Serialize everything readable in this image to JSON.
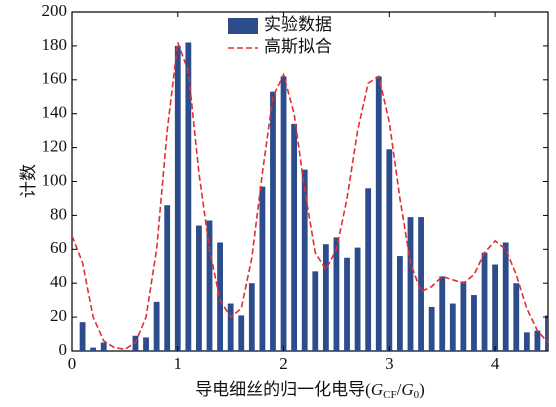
{
  "chart_data": {
    "type": "bar",
    "x": [
      0.1,
      0.2,
      0.3,
      0.4,
      0.5,
      0.6,
      0.7,
      0.8,
      0.9,
      1.0,
      1.1,
      1.2,
      1.3,
      1.4,
      1.5,
      1.6,
      1.7,
      1.8,
      1.9,
      2.0,
      2.1,
      2.2,
      2.3,
      2.4,
      2.5,
      2.6,
      2.7,
      2.8,
      2.9,
      3.0,
      3.1,
      3.2,
      3.3,
      3.4,
      3.5,
      3.6,
      3.7,
      3.8,
      3.9,
      4.0,
      4.1,
      4.2,
      4.3,
      4.4,
      4.5
    ],
    "series": [
      {
        "name": "实验数据",
        "type": "bar",
        "color": "#2c4c8c",
        "values": [
          17,
          2,
          5,
          0,
          0,
          9,
          8,
          29,
          86,
          180,
          182,
          74,
          77,
          64,
          28,
          21,
          40,
          97,
          153,
          162,
          134,
          107,
          47,
          63,
          67,
          55,
          61,
          96,
          162,
          119,
          56,
          79,
          79,
          26,
          44,
          28,
          41,
          33,
          58,
          51,
          64,
          40,
          11,
          12,
          21
        ]
      },
      {
        "name": "高斯拟合",
        "type": "line",
        "color": "#e03030",
        "x": [
          0,
          0.1,
          0.2,
          0.3,
          0.4,
          0.5,
          0.6,
          0.7,
          0.8,
          0.9,
          1.0,
          1.1,
          1.2,
          1.3,
          1.4,
          1.5,
          1.6,
          1.7,
          1.8,
          1.9,
          2.0,
          2.1,
          2.2,
          2.3,
          2.4,
          2.5,
          2.6,
          2.7,
          2.8,
          2.9,
          3.0,
          3.1,
          3.2,
          3.3,
          3.4,
          3.5,
          3.6,
          3.7,
          3.8,
          3.9,
          4.0,
          4.1,
          4.2,
          4.3,
          4.4,
          4.5
        ],
        "values": [
          68,
          52,
          20,
          6,
          2,
          1,
          5,
          20,
          60,
          130,
          182,
          165,
          105,
          60,
          30,
          20,
          25,
          55,
          105,
          150,
          163,
          140,
          95,
          58,
          48,
          60,
          90,
          130,
          158,
          162,
          135,
          90,
          52,
          35,
          38,
          44,
          42,
          40,
          45,
          58,
          65,
          60,
          45,
          25,
          12,
          5
        ]
      }
    ],
    "x_label": [
      "导电细丝的归一化电导(",
      "G",
      "CF",
      "/",
      "G",
      "0",
      ")"
    ],
    "y_label": "计数",
    "xlim": [
      0,
      4.5
    ],
    "xticks": [
      0,
      1,
      2,
      3,
      4
    ],
    "ylim": [
      0,
      200
    ],
    "yticks": [
      0,
      20,
      40,
      60,
      80,
      100,
      120,
      140,
      160,
      180,
      200
    ],
    "legend": "top"
  }
}
